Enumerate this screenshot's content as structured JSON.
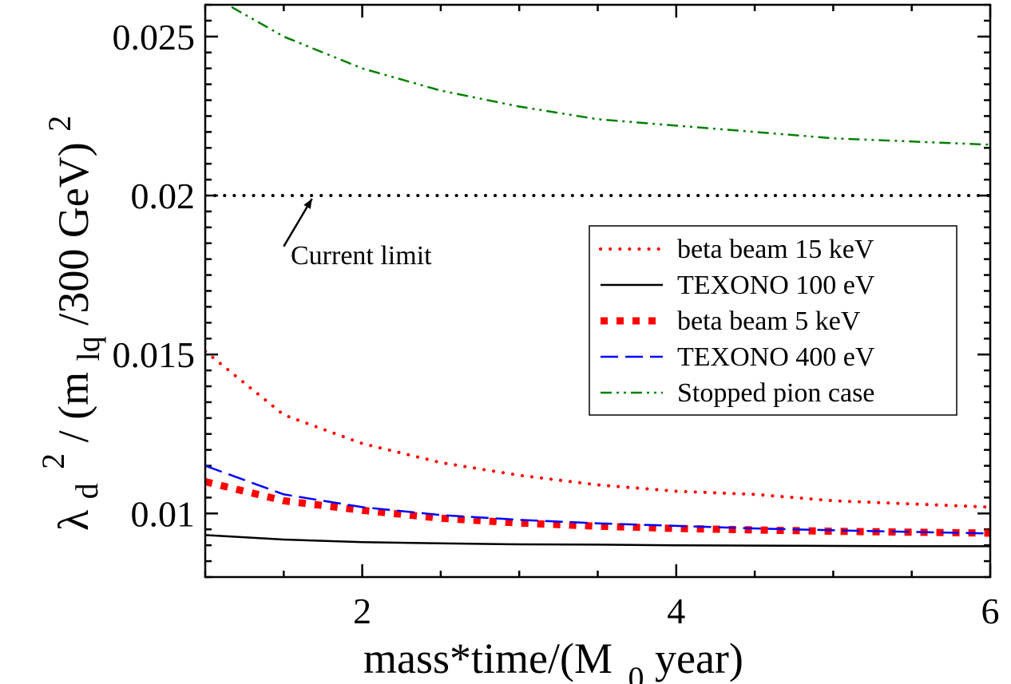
{
  "chart_data": {
    "type": "line",
    "xlabel": "mass*time/(M",
    "xlabel_sub": "0",
    "xlabel_end": " year)",
    "ylabel": {
      "lambda": "λ",
      "lambda_sub": "d",
      "lambda_sup": "2",
      "mid": " / (m",
      "mid_sub": "lq",
      "tail": "/300 GeV)",
      "tail_sup": "2"
    },
    "xlim": [
      1.0,
      6.0
    ],
    "ylim": [
      0.008,
      0.026
    ],
    "xticks": [
      2,
      4,
      6
    ],
    "xtick_labels": [
      "2",
      "4",
      "6"
    ],
    "yticks": [
      0.01,
      0.015,
      0.02,
      0.025
    ],
    "ytick_labels": [
      "0.01",
      "0.015",
      "0.02",
      "0.025"
    ],
    "grid": false,
    "legend_position": "center-right",
    "series": [
      {
        "name": "beta beam 15 keV",
        "color": "#ff0000",
        "style": "dotted",
        "x": [
          1.0,
          1.5,
          2.0,
          2.5,
          3.0,
          3.5,
          4.0,
          4.5,
          5.0,
          5.5,
          6.0
        ],
        "y": [
          0.0151,
          0.0131,
          0.0122,
          0.0116,
          0.0112,
          0.0109,
          0.0107,
          0.0106,
          0.0104,
          0.0103,
          0.0102
        ]
      },
      {
        "name": "TEXONO 100 eV",
        "color": "#000000",
        "style": "solid",
        "x": [
          1.0,
          1.5,
          2.0,
          2.5,
          3.0,
          3.5,
          4.0,
          4.5,
          5.0,
          5.5,
          6.0
        ],
        "y": [
          0.00932,
          0.00918,
          0.0091,
          0.00906,
          0.00903,
          0.00902,
          0.009,
          0.00899,
          0.00898,
          0.00897,
          0.00897
        ]
      },
      {
        "name": "beta beam 5 keV",
        "color": "#ff0000",
        "style": "thick-dotted",
        "x": [
          1.0,
          1.5,
          2.0,
          2.5,
          3.0,
          3.5,
          4.0,
          4.5,
          5.0,
          5.5,
          6.0
        ],
        "y": [
          0.011,
          0.0104,
          0.0101,
          0.00985,
          0.0097,
          0.0096,
          0.00953,
          0.00948,
          0.00944,
          0.00941,
          0.00938
        ]
      },
      {
        "name": "TEXONO 400 eV",
        "color": "#0000ff",
        "style": "dashed",
        "x": [
          1.0,
          1.5,
          2.0,
          2.5,
          3.0,
          3.5,
          4.0,
          4.5,
          5.0,
          5.5,
          6.0
        ],
        "y": [
          0.0115,
          0.0106,
          0.0102,
          0.00995,
          0.0098,
          0.00969,
          0.00961,
          0.00953,
          0.00947,
          0.00942,
          0.00937
        ]
      },
      {
        "name": "Stopped pion case",
        "color": "#008000",
        "style": "dashdot",
        "x": [
          1.0,
          1.5,
          2.0,
          2.5,
          3.0,
          3.5,
          4.0,
          4.5,
          5.0,
          5.5,
          6.0
        ],
        "y": [
          0.0264,
          0.025,
          0.024,
          0.0233,
          0.0228,
          0.0224,
          0.0222,
          0.022,
          0.0218,
          0.0217,
          0.0216
        ]
      }
    ],
    "reference_line": {
      "y": 0.02,
      "color": "#000000",
      "style": "dotted"
    },
    "annotation": {
      "text": "Current limit",
      "arrow_from": [
        1.5,
        0.0184
      ],
      "arrow_to": [
        1.68,
        0.0199
      ]
    }
  }
}
